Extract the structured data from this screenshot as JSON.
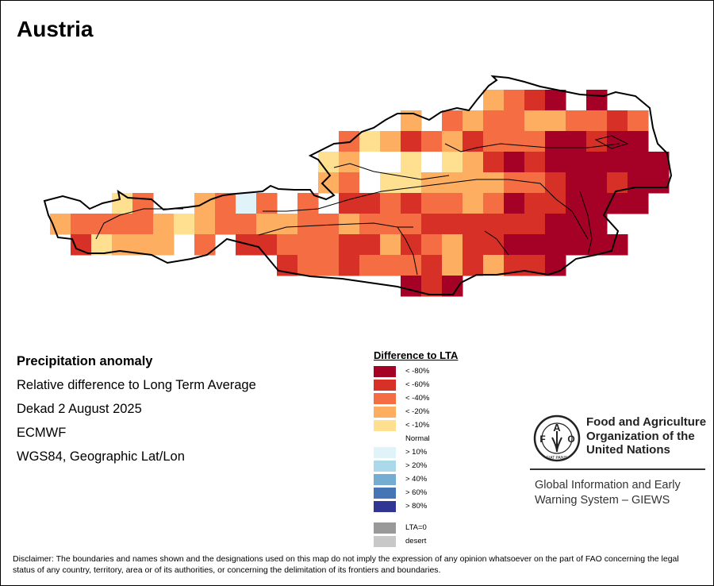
{
  "title": "Austria",
  "info": {
    "heading": "Precipitation anomaly",
    "subtitle": "Relative difference to Long Term Average",
    "period": "Dekad 2 August 2025",
    "source": "ECMWF",
    "projection": "WGS84, Geographic Lat/Lon"
  },
  "legend": {
    "title": "Difference to LTA",
    "items": [
      {
        "label": "< -80%",
        "color": "#a50026"
      },
      {
        "label": "< -60%",
        "color": "#d73027"
      },
      {
        "label": "< -40%",
        "color": "#f46d43"
      },
      {
        "label": "< -20%",
        "color": "#fdae61"
      },
      {
        "label": "< -10%",
        "color": "#fee090"
      },
      {
        "label": "Normal",
        "color": "#ffffff"
      },
      {
        "label": "> 10%",
        "color": "#e0f3f8"
      },
      {
        "label": "> 20%",
        "color": "#abd9e9"
      },
      {
        "label": "> 40%",
        "color": "#74add1"
      },
      {
        "label": "> 60%",
        "color": "#4575b4"
      },
      {
        "label": "> 80%",
        "color": "#313695"
      },
      {
        "label": "LTA=0",
        "color": "#999999"
      },
      {
        "label": "desert",
        "color": "#c8c8c8"
      }
    ]
  },
  "grid": {
    "legend_code": {
      "5": 0,
      "4": 1,
      "3": 2,
      "2": 3,
      "1": 4,
      "0": 5,
      "b": 6
    },
    "rows": [
      ".....................2345.5....",
      ".................2.3233223343..",
      "..............312432433355455..",
      ".............12001012454555555.",
      ".............23011222233455455.",
      "...13..23b3.3.443433235445555..",
      "233332123322332333444444555....",
      ".41222.3.4433344243244555555....",
      "...........43343334242445......",
      ".................545..........."
    ]
  },
  "logo": {
    "org_line1": "Food and Agriculture",
    "org_line2": "Organization of the",
    "org_line3": "United Nations",
    "emblem_text": "FAO FIAT PANIS",
    "system_line1": "Global Information and Early",
    "system_line2": "Warning System – GIEWS"
  },
  "disclaimer": "Disclaimer: The boundaries and names shown and the designations used on this map do not imply the expression of any opinion whatsoever on the part of FAO concerning the legal status of any country, territory, area or of its authorities, or concerning the delimitation of its frontiers and boundaries."
}
